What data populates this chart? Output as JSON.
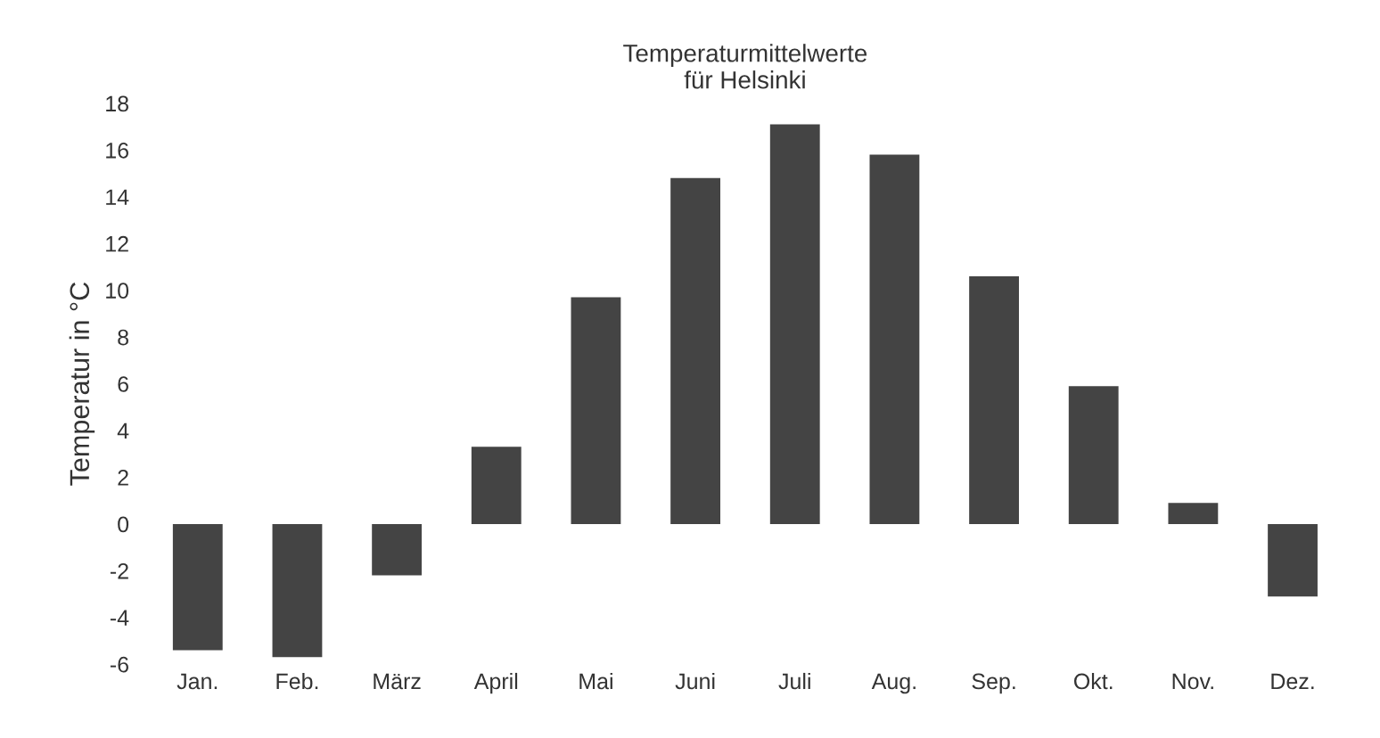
{
  "chart_data": {
    "type": "bar",
    "title": "Temperaturmittelwerte\nfür Helsinki",
    "ylabel": "Temperatur in °C",
    "categories": [
      "Jan.",
      "Feb.",
      "März",
      "April",
      "Mai",
      "Juni",
      "Juli",
      "Aug.",
      "Sep.",
      "Okt.",
      "Nov.",
      "Dez."
    ],
    "values": [
      -5.4,
      -5.7,
      -2.2,
      3.3,
      9.7,
      14.8,
      17.1,
      15.8,
      10.6,
      5.9,
      0.9,
      -3.1
    ],
    "color": "#444444",
    "ylim": [
      -6,
      18
    ],
    "yticks": [
      -6,
      -4,
      -2,
      0,
      2,
      4,
      6,
      8,
      10,
      12,
      14,
      16,
      18
    ],
    "grid": false,
    "legend": false
  }
}
